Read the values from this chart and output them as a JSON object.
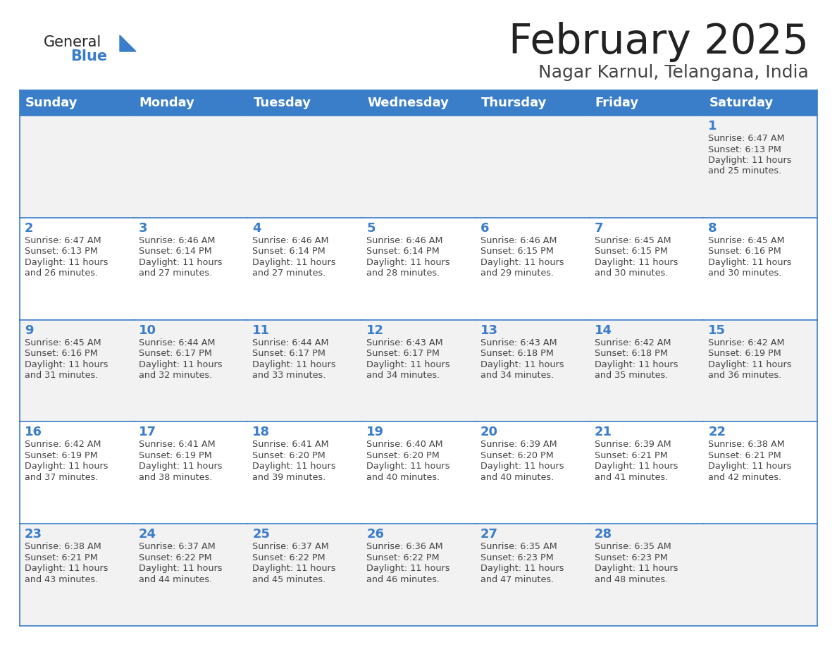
{
  "title": "February 2025",
  "subtitle": "Nagar Karnul, Telangana, India",
  "days_of_week": [
    "Sunday",
    "Monday",
    "Tuesday",
    "Wednesday",
    "Thursday",
    "Friday",
    "Saturday"
  ],
  "header_bg": "#3A7DC9",
  "header_text": "#FFFFFF",
  "cell_bg_odd": "#F2F2F2",
  "cell_bg_even": "#FFFFFF",
  "border_color": "#3A7DC9",
  "day_number_color": "#3A7DC9",
  "cell_text_color": "#444444",
  "title_color": "#222222",
  "subtitle_color": "#444444",
  "logo_general_color": "#222222",
  "logo_blue_color": "#3A7DC9",
  "weeks": [
    [
      {
        "day": null,
        "sunrise": null,
        "sunset": null,
        "daylight": null
      },
      {
        "day": null,
        "sunrise": null,
        "sunset": null,
        "daylight": null
      },
      {
        "day": null,
        "sunrise": null,
        "sunset": null,
        "daylight": null
      },
      {
        "day": null,
        "sunrise": null,
        "sunset": null,
        "daylight": null
      },
      {
        "day": null,
        "sunrise": null,
        "sunset": null,
        "daylight": null
      },
      {
        "day": null,
        "sunrise": null,
        "sunset": null,
        "daylight": null
      },
      {
        "day": 1,
        "sunrise": "6:47 AM",
        "sunset": "6:13 PM",
        "daylight": "11 hours and 25 minutes."
      }
    ],
    [
      {
        "day": 2,
        "sunrise": "6:47 AM",
        "sunset": "6:13 PM",
        "daylight": "11 hours and 26 minutes."
      },
      {
        "day": 3,
        "sunrise": "6:46 AM",
        "sunset": "6:14 PM",
        "daylight": "11 hours and 27 minutes."
      },
      {
        "day": 4,
        "sunrise": "6:46 AM",
        "sunset": "6:14 PM",
        "daylight": "11 hours and 27 minutes."
      },
      {
        "day": 5,
        "sunrise": "6:46 AM",
        "sunset": "6:14 PM",
        "daylight": "11 hours and 28 minutes."
      },
      {
        "day": 6,
        "sunrise": "6:46 AM",
        "sunset": "6:15 PM",
        "daylight": "11 hours and 29 minutes."
      },
      {
        "day": 7,
        "sunrise": "6:45 AM",
        "sunset": "6:15 PM",
        "daylight": "11 hours and 30 minutes."
      },
      {
        "day": 8,
        "sunrise": "6:45 AM",
        "sunset": "6:16 PM",
        "daylight": "11 hours and 30 minutes."
      }
    ],
    [
      {
        "day": 9,
        "sunrise": "6:45 AM",
        "sunset": "6:16 PM",
        "daylight": "11 hours and 31 minutes."
      },
      {
        "day": 10,
        "sunrise": "6:44 AM",
        "sunset": "6:17 PM",
        "daylight": "11 hours and 32 minutes."
      },
      {
        "day": 11,
        "sunrise": "6:44 AM",
        "sunset": "6:17 PM",
        "daylight": "11 hours and 33 minutes."
      },
      {
        "day": 12,
        "sunrise": "6:43 AM",
        "sunset": "6:17 PM",
        "daylight": "11 hours and 34 minutes."
      },
      {
        "day": 13,
        "sunrise": "6:43 AM",
        "sunset": "6:18 PM",
        "daylight": "11 hours and 34 minutes."
      },
      {
        "day": 14,
        "sunrise": "6:42 AM",
        "sunset": "6:18 PM",
        "daylight": "11 hours and 35 minutes."
      },
      {
        "day": 15,
        "sunrise": "6:42 AM",
        "sunset": "6:19 PM",
        "daylight": "11 hours and 36 minutes."
      }
    ],
    [
      {
        "day": 16,
        "sunrise": "6:42 AM",
        "sunset": "6:19 PM",
        "daylight": "11 hours and 37 minutes."
      },
      {
        "day": 17,
        "sunrise": "6:41 AM",
        "sunset": "6:19 PM",
        "daylight": "11 hours and 38 minutes."
      },
      {
        "day": 18,
        "sunrise": "6:41 AM",
        "sunset": "6:20 PM",
        "daylight": "11 hours and 39 minutes."
      },
      {
        "day": 19,
        "sunrise": "6:40 AM",
        "sunset": "6:20 PM",
        "daylight": "11 hours and 40 minutes."
      },
      {
        "day": 20,
        "sunrise": "6:39 AM",
        "sunset": "6:20 PM",
        "daylight": "11 hours and 40 minutes."
      },
      {
        "day": 21,
        "sunrise": "6:39 AM",
        "sunset": "6:21 PM",
        "daylight": "11 hours and 41 minutes."
      },
      {
        "day": 22,
        "sunrise": "6:38 AM",
        "sunset": "6:21 PM",
        "daylight": "11 hours and 42 minutes."
      }
    ],
    [
      {
        "day": 23,
        "sunrise": "6:38 AM",
        "sunset": "6:21 PM",
        "daylight": "11 hours and 43 minutes."
      },
      {
        "day": 24,
        "sunrise": "6:37 AM",
        "sunset": "6:22 PM",
        "daylight": "11 hours and 44 minutes."
      },
      {
        "day": 25,
        "sunrise": "6:37 AM",
        "sunset": "6:22 PM",
        "daylight": "11 hours and 45 minutes."
      },
      {
        "day": 26,
        "sunrise": "6:36 AM",
        "sunset": "6:22 PM",
        "daylight": "11 hours and 46 minutes."
      },
      {
        "day": 27,
        "sunrise": "6:35 AM",
        "sunset": "6:23 PM",
        "daylight": "11 hours and 47 minutes."
      },
      {
        "day": 28,
        "sunrise": "6:35 AM",
        "sunset": "6:23 PM",
        "daylight": "11 hours and 48 minutes."
      },
      {
        "day": null,
        "sunrise": null,
        "sunset": null,
        "daylight": null
      }
    ]
  ]
}
